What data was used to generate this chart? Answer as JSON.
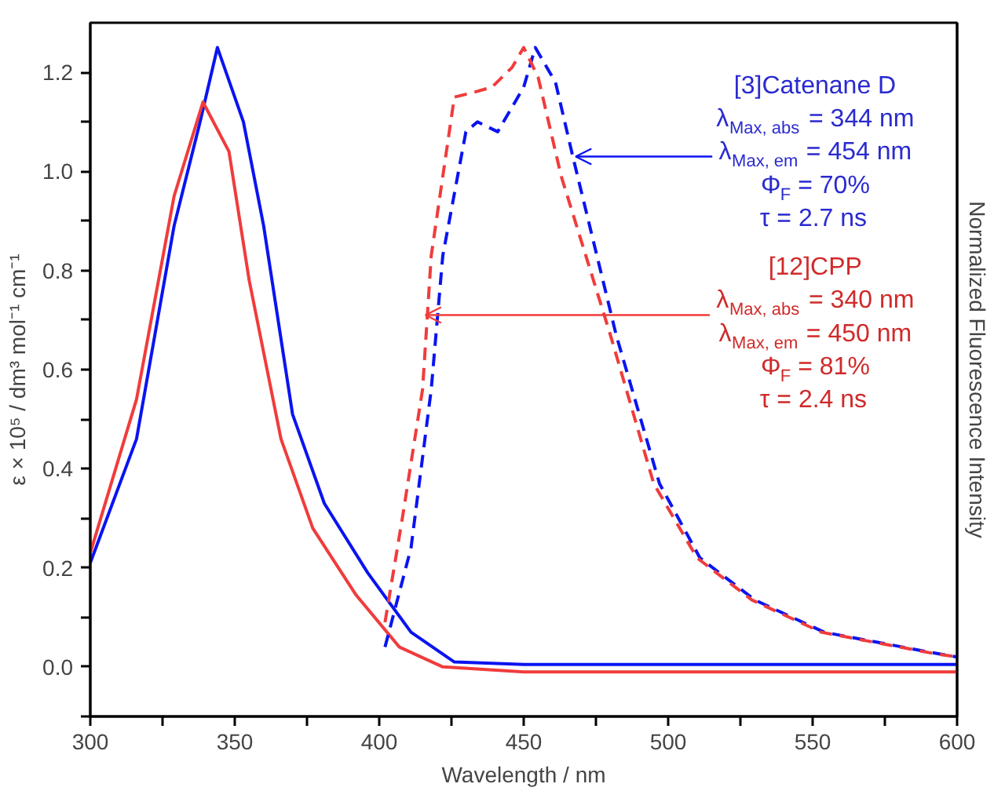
{
  "chart_data": {
    "type": "line",
    "xlabel": "Wavelength / nm",
    "ylabel": "ε × 10⁵ / dm³ mol⁻¹ cm⁻¹",
    "y2label": "Normalized Fluorescence Intensity",
    "xlim": [
      300,
      600
    ],
    "ylim": [
      -0.1,
      1.3
    ],
    "xticks": [
      300,
      {
        "value": 325,
        "label": null
      },
      350,
      {
        "value": 375,
        "label": null
      },
      400,
      {
        "value": 425,
        "label": null
      },
      450,
      {
        "value": 475,
        "label": null
      },
      500,
      {
        "value": 525,
        "label": null
      },
      550,
      {
        "value": 575,
        "label": null
      },
      600
    ],
    "yticks": [
      {
        "value": -0.1,
        "label": null
      },
      {
        "value": 0,
        "label": "0.0"
      },
      {
        "value": 0.1,
        "label": null
      },
      {
        "value": 0.2,
        "label": "0.2"
      },
      {
        "value": 0.3,
        "label": null
      },
      {
        "value": 0.4,
        "label": "0.4"
      },
      {
        "value": 0.5,
        "label": null
      },
      {
        "value": 0.6,
        "label": "0.6"
      },
      {
        "value": 0.7,
        "label": null
      },
      {
        "value": 0.8,
        "label": "0.8"
      },
      {
        "value": 0.9,
        "label": null
      },
      {
        "value": 1.0,
        "label": "1.0"
      },
      {
        "value": 1.1,
        "label": null
      },
      {
        "value": 1.2,
        "label": "1.2"
      }
    ],
    "grid": false,
    "marker": "none",
    "series": [
      {
        "color": "#0a14f0",
        "line_style": "solid",
        "x": [
          300,
          316,
          329,
          338,
          344,
          353,
          360,
          370,
          381,
          396,
          411,
          426,
          450,
          500,
          550,
          600
        ],
        "values": [
          0.21,
          0.46,
          0.89,
          1.1,
          1.25,
          1.1,
          0.89,
          0.51,
          0.33,
          0.19,
          0.07,
          0.01,
          0.005,
          0.005,
          0.005,
          0.005
        ]
      },
      {
        "color": "#f03c3c",
        "line_style": "solid",
        "x": [
          300,
          316,
          329,
          339,
          348,
          355,
          366,
          377,
          392,
          407,
          422,
          450,
          500,
          550,
          600
        ],
        "values": [
          0.23,
          0.54,
          0.95,
          1.14,
          1.04,
          0.78,
          0.46,
          0.28,
          0.145,
          0.04,
          0.0,
          -0.01,
          -0.01,
          -0.01,
          -0.01
        ]
      },
      {
        "color": "#0a14f0",
        "line_style": "dashed",
        "x": [
          402,
          411,
          418,
          422,
          430,
          434,
          441,
          450,
          454,
          461,
          467,
          482,
          497,
          511,
          530,
          554,
          593,
          600
        ],
        "values": [
          0.04,
          0.24,
          0.56,
          0.83,
          1.08,
          1.1,
          1.08,
          1.17,
          1.25,
          1.18,
          1.03,
          0.67,
          0.37,
          0.22,
          0.135,
          0.07,
          0.027,
          0.02
        ]
      },
      {
        "color": "#f03c3c",
        "line_style": "dashed",
        "x": [
          402,
          408,
          415,
          418,
          426,
          433,
          439,
          446,
          450,
          455,
          463,
          480,
          495,
          510,
          529,
          553,
          592,
          600
        ],
        "values": [
          0.09,
          0.3,
          0.56,
          0.83,
          1.15,
          1.16,
          1.17,
          1.21,
          1.25,
          1.19,
          0.99,
          0.67,
          0.37,
          0.22,
          0.135,
          0.07,
          0.027,
          0.02
        ]
      }
    ],
    "annotations": [
      "[3]Catenane D",
      "λ$_{Max, abs}$ = 344 nm",
      {
        "text": "λ$_{Max, em}$ = 454 nm",
        "x": 468,
        "y": 1.03
      },
      "Φ$_{F}$ = 70%",
      "τ = 2.7 ns",
      "[12]CPP",
      {
        "text": "λ$_{Max, abs}$ = 340 nm",
        "x": 416,
        "y": 0.71
      },
      "λ$_{Max, em}$ = 450 nm",
      "Φ$_{F}$ = 81%",
      "τ = 2.4 ns"
    ]
  }
}
